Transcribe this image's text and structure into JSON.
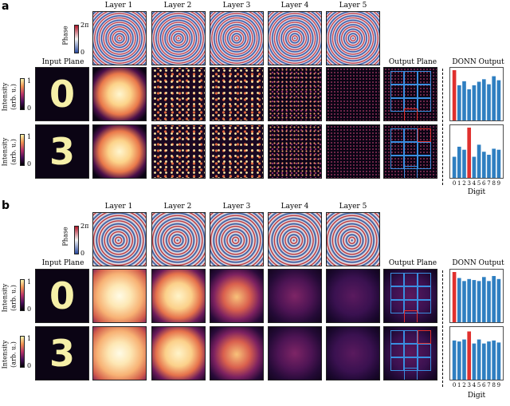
{
  "panels": [
    "a",
    "b"
  ],
  "columns": {
    "input": "Input Plane",
    "layers": [
      "Layer 1",
      "Layer 2",
      "Layer 3",
      "Layer 4",
      "Layer 5"
    ],
    "output": "Output Plane",
    "donn": "DONN Output"
  },
  "phase_colorbar": {
    "label": "Phase",
    "max": "2π",
    "min": "0"
  },
  "intensity_colorbar": {
    "label_line1": "Intensity",
    "label_line2": "(arb. u.)",
    "max": "1",
    "min": "0"
  },
  "digits": [
    "0",
    "3"
  ],
  "digit_axis": {
    "label": "Digit",
    "ticks": [
      "0",
      "1",
      "2",
      "3",
      "4",
      "5",
      "6",
      "7",
      "8",
      "9"
    ]
  },
  "colors": {
    "bar": "#2f7fc1",
    "highlight": "#e0302e"
  },
  "donn_outputs": {
    "a_digit0": [
      1.0,
      0.7,
      0.78,
      0.62,
      0.7,
      0.77,
      0.82,
      0.72,
      0.88,
      0.8
    ],
    "a_digit3": [
      0.42,
      0.62,
      0.56,
      1.0,
      0.42,
      0.66,
      0.52,
      0.46,
      0.58,
      0.56
    ],
    "b_digit0": [
      1.0,
      0.88,
      0.82,
      0.86,
      0.84,
      0.82,
      0.9,
      0.82,
      0.92,
      0.86
    ],
    "b_digit3": [
      0.78,
      0.76,
      0.8,
      0.96,
      0.72,
      0.8,
      0.72,
      0.76,
      0.78,
      0.74
    ]
  }
}
